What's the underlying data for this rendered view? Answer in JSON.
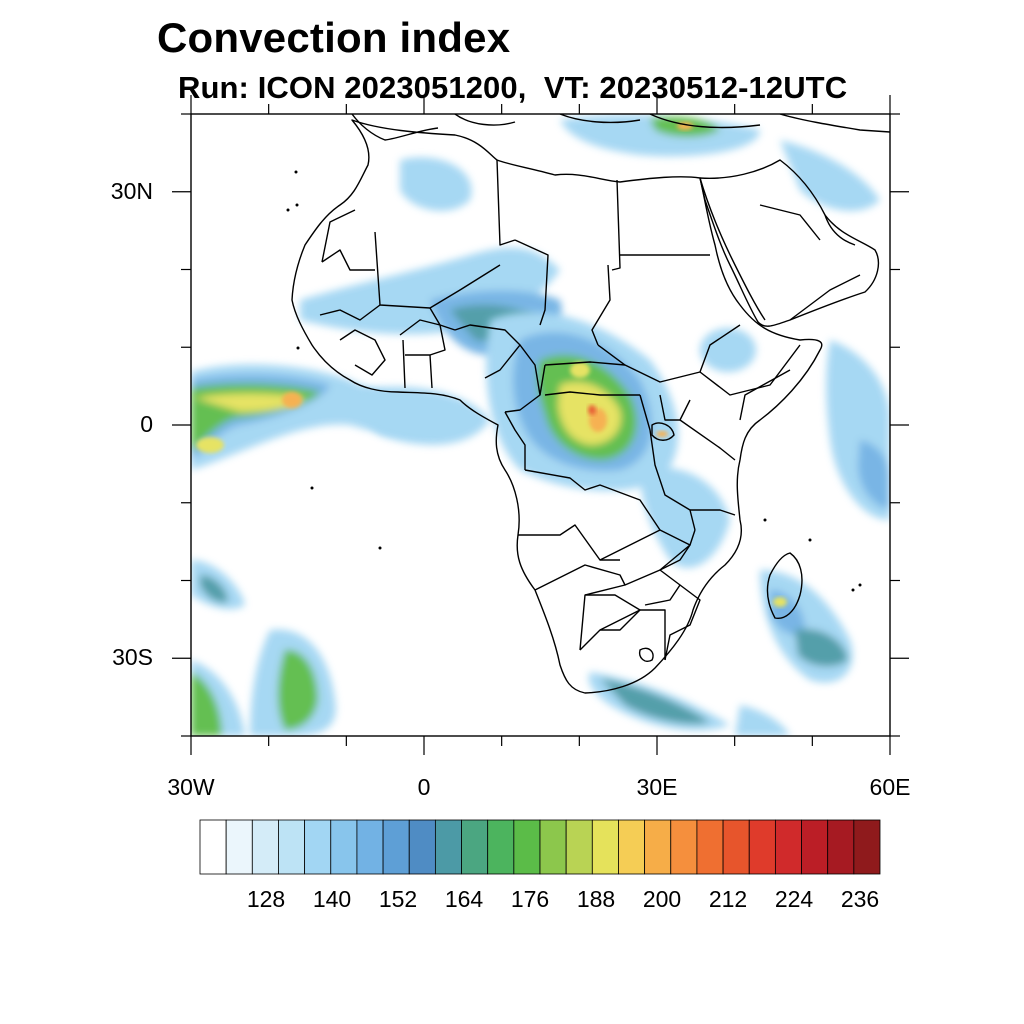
{
  "title": "Convection index",
  "subtitle": "Run: ICON 2023051200,  VT: 20230512-12UTC",
  "map": {
    "extent": {
      "lon_min": -30,
      "lon_max": 60,
      "lat_min": -40,
      "lat_max": 40
    },
    "lat_ticks": [
      {
        "value": 30,
        "label": "30N"
      },
      {
        "value": 0,
        "label": "0"
      },
      {
        "value": -30,
        "label": "30S"
      }
    ],
    "lon_ticks": [
      {
        "value": -30,
        "label": "30W"
      },
      {
        "value": 0,
        "label": "0"
      },
      {
        "value": 30,
        "label": "30E"
      },
      {
        "value": 60,
        "label": "60E"
      }
    ],
    "minor_lat_ticks": [
      40,
      20,
      10,
      -10,
      -20,
      -40
    ],
    "minor_lon_ticks": [
      -20,
      -10,
      10,
      20,
      40,
      50
    ]
  },
  "colorbar": {
    "colors": [
      "#ffffff",
      "#ebf6fc",
      "#d4ecf8",
      "#bde3f5",
      "#a2d6f3",
      "#88c5ec",
      "#72b2e4",
      "#5e9fd6",
      "#4f8cc4",
      "#4c9aa6",
      "#4ba681",
      "#4cb45e",
      "#5bbc48",
      "#8cc74c",
      "#b9d354",
      "#e5e25b",
      "#f5cd55",
      "#f6ad48",
      "#f58f3d",
      "#ef6f31",
      "#e7552c",
      "#df3b2b",
      "#d02a2b",
      "#bb1e26",
      "#a61a22",
      "#8f1a1c"
    ],
    "labels": [
      "128",
      "140",
      "152",
      "164",
      "176",
      "188",
      "200",
      "212",
      "224",
      "236"
    ]
  },
  "field_palette": {
    "light": "#a2d6f3",
    "blue": "#72b2e4",
    "teal": "#4c9aa6",
    "green": "#5bbc48",
    "yellow": "#e5e25b",
    "orange": "#f6ad48",
    "red": "#e7552c"
  },
  "style": {
    "border_color": "#000000",
    "frame_color": "#000000"
  }
}
